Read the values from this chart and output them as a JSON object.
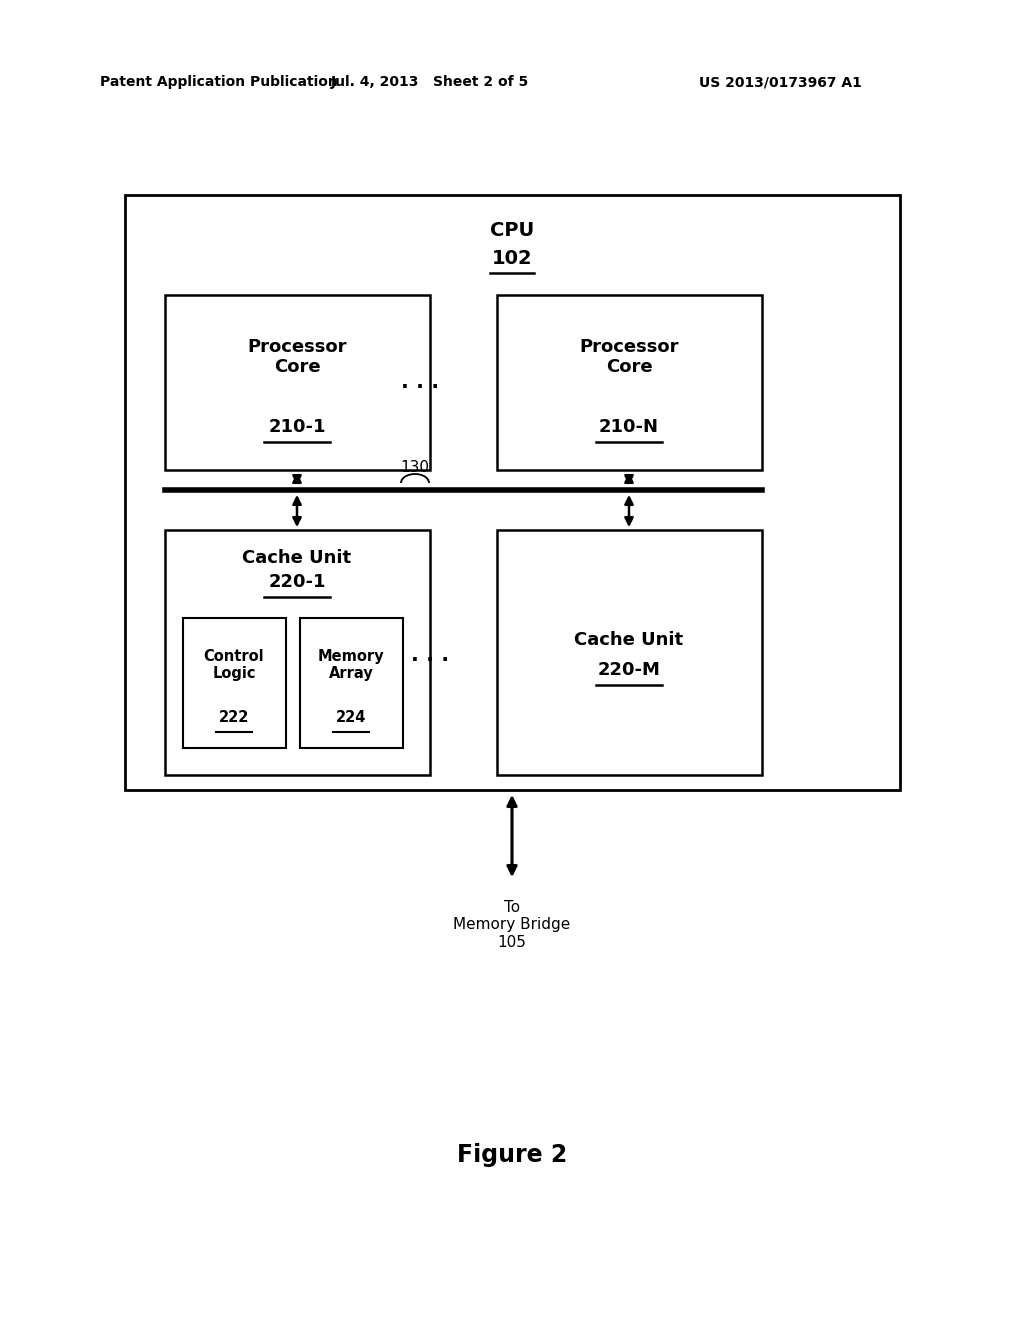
{
  "bg_color": "#ffffff",
  "header_left": "Patent Application Publication",
  "header_mid": "Jul. 4, 2013   Sheet 2 of 5",
  "header_right": "US 2013/0173967 A1",
  "figure_label": "Figure 2",
  "cpu_label": "CPU",
  "cpu_ref": "102",
  "proc_core1_label": "Processor\nCore",
  "proc_core1_ref": "210-1",
  "proc_coreN_label": "Processor\nCore",
  "proc_coreN_ref": "210-N",
  "ellipsis_top": ". . .",
  "bus_ref": "130",
  "cache1_label": "Cache Unit",
  "cache1_ref": "220-1",
  "cacheM_label": "Cache Unit",
  "cacheM_ref": "220-M",
  "ctrl_label": "Control\nLogic",
  "ctrl_ref": "222",
  "mem_label": "Memory\nArray",
  "mem_ref": "224",
  "ellipsis_bot": ". . .",
  "mem_bridge_label": "To\nMemory Bridge\n105"
}
